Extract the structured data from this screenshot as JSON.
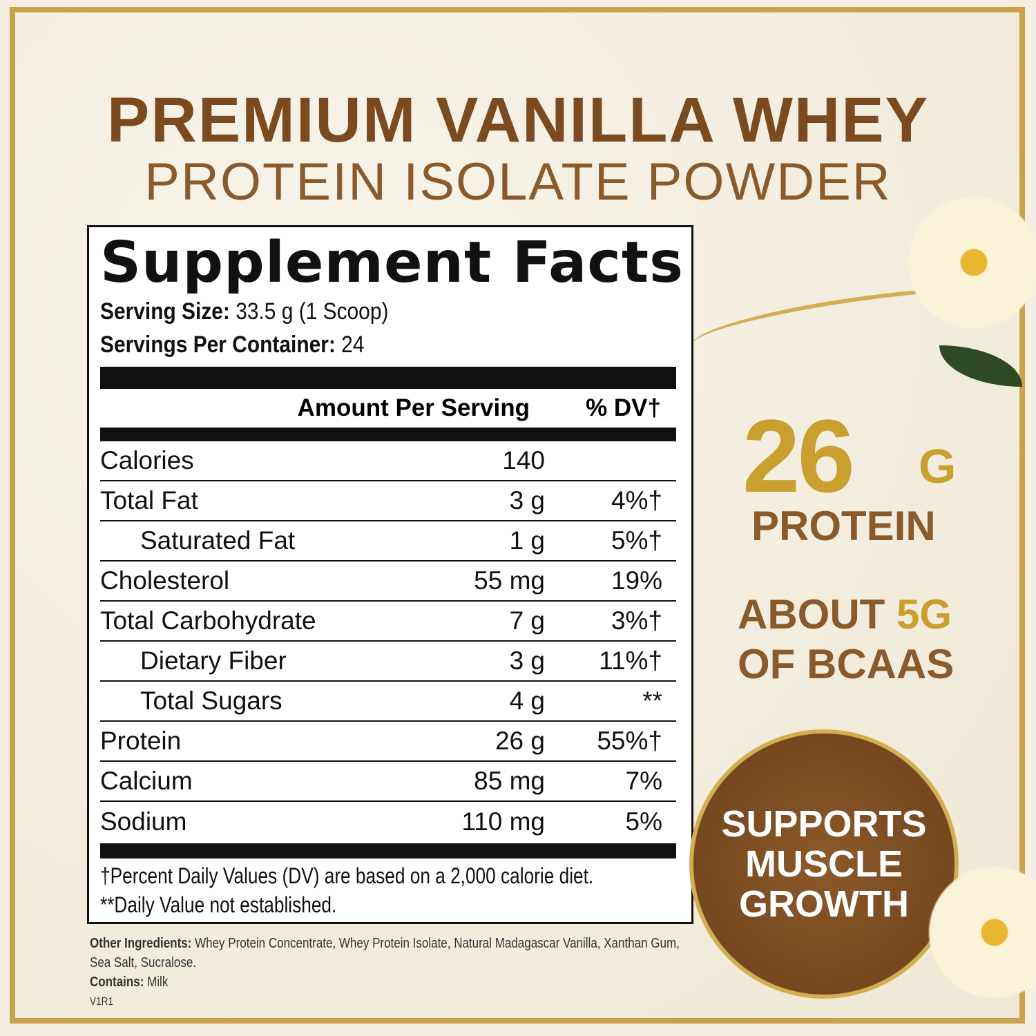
{
  "title": {
    "line1": "PREMIUM VANILLA WHEY",
    "line2": "PROTEIN ISOLATE POWDER"
  },
  "facts": {
    "heading": "Supplement Facts",
    "serving_size_label": "Serving Size:",
    "serving_size": "33.5 g (1 Scoop)",
    "servings_label": "Servings Per Container:",
    "servings": "24",
    "col_amount": "Amount Per Serving",
    "col_dv": "% DV†",
    "rows": [
      {
        "name": "Calories",
        "amount": "140",
        "dv": "",
        "indent": false
      },
      {
        "name": "Total Fat",
        "amount": "3 g",
        "dv": "4%†",
        "indent": false
      },
      {
        "name": "Saturated Fat",
        "amount": "1 g",
        "dv": "5%†",
        "indent": true
      },
      {
        "name": "Cholesterol",
        "amount": "55 mg",
        "dv": "19%",
        "indent": false
      },
      {
        "name": "Total Carbohydrate",
        "amount": "7 g",
        "dv": "3%†",
        "indent": false
      },
      {
        "name": "Dietary Fiber",
        "amount": "3 g",
        "dv": "11%†",
        "indent": true
      },
      {
        "name": "Total Sugars",
        "amount": "4 g",
        "dv": "**",
        "indent": true
      },
      {
        "name": "Protein",
        "amount": "26 g",
        "dv": "55%†",
        "indent": false
      },
      {
        "name": "Calcium",
        "amount": "85 mg",
        "dv": "7%",
        "indent": false
      },
      {
        "name": "Sodium",
        "amount": "110 mg",
        "dv": "5%",
        "indent": false
      }
    ],
    "footnote1": "†Percent Daily Values (DV) are based on a 2,000 calorie diet.",
    "footnote2": "**Daily Value not established."
  },
  "ingredients": {
    "label": "Other Ingredients:",
    "text": "Whey Protein Concentrate, Whey Protein Isolate, Natural Madagascar Vanilla, Xanthan Gum, Sea Salt, Sucralose.",
    "contains_label": "Contains:",
    "contains": "Milk",
    "version": "V1R1"
  },
  "claims": {
    "protein_num": "26",
    "protein_unit": "G",
    "protein_label": "PROTEIN",
    "bcaa_about": "ABOUT",
    "bcaa_num": "5G",
    "bcaa_label": "OF BCAAS",
    "badge": [
      "SUPPORTS",
      "MUSCLE",
      "GROWTH"
    ]
  },
  "colors": {
    "brown": "#7b4a1f",
    "gold": "#c9a030"
  }
}
